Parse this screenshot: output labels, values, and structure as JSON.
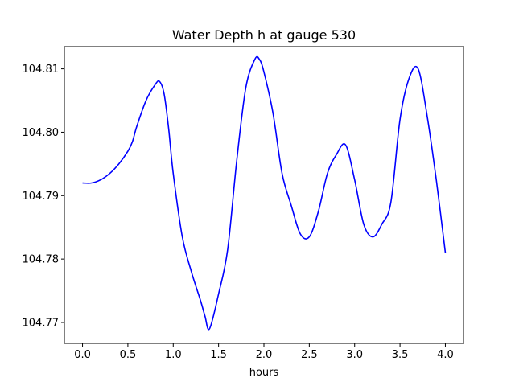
{
  "chart_data": {
    "type": "line",
    "title": "Water Depth h at gauge 530",
    "xlabel": "hours",
    "ylabel": "",
    "xlim": [
      -0.2,
      4.2
    ],
    "ylim": [
      104.7667,
      104.8135
    ],
    "xticks": [
      0.0,
      0.5,
      1.0,
      1.5,
      2.0,
      2.5,
      3.0,
      3.5,
      4.0
    ],
    "xtick_labels": [
      "0.0",
      "0.5",
      "1.0",
      "1.5",
      "2.0",
      "2.5",
      "3.0",
      "3.5",
      "4.0"
    ],
    "yticks": [
      104.77,
      104.78,
      104.79,
      104.8,
      104.81
    ],
    "ytick_labels": [
      "104.77",
      "104.78",
      "104.79",
      "104.80",
      "104.81"
    ],
    "grid": false,
    "series": [
      {
        "color": "#0000ff",
        "x": [
          0.0,
          0.1,
          0.2,
          0.3,
          0.4,
          0.5,
          0.55,
          0.6,
          0.7,
          0.8,
          0.85,
          0.9,
          0.95,
          1.0,
          1.1,
          1.2,
          1.3,
          1.35,
          1.4,
          1.5,
          1.6,
          1.7,
          1.8,
          1.9,
          1.95,
          2.0,
          2.1,
          2.2,
          2.3,
          2.4,
          2.5,
          2.6,
          2.7,
          2.8,
          2.9,
          3.0,
          3.1,
          3.2,
          3.3,
          3.4,
          3.5,
          3.6,
          3.7,
          3.8,
          3.9,
          4.0
        ],
        "y": [
          104.792,
          104.792,
          104.7925,
          104.7935,
          104.795,
          104.797,
          104.7985,
          104.801,
          104.805,
          104.8075,
          104.808,
          104.806,
          104.8005,
          104.7935,
          104.7835,
          104.778,
          104.7735,
          104.771,
          104.769,
          104.7745,
          104.7815,
          104.7955,
          104.807,
          104.8115,
          104.8115,
          104.8095,
          104.803,
          104.7935,
          104.7885,
          104.784,
          104.7835,
          104.7875,
          104.7935,
          104.7965,
          104.798,
          104.7925,
          104.7855,
          104.7835,
          104.7855,
          104.789,
          104.802,
          104.8085,
          104.81,
          104.8025,
          104.7925,
          104.781
        ]
      }
    ]
  }
}
